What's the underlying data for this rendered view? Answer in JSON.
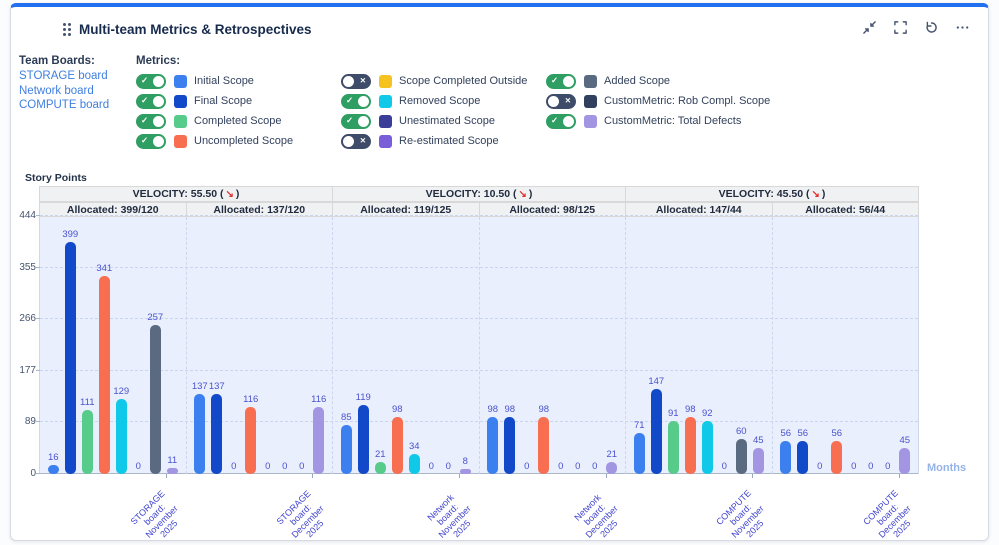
{
  "header": {
    "title": "Multi-team Metrics & Retrospectives",
    "icons": [
      "drag-handle-icon",
      "collapse-icon",
      "fullscreen-icon",
      "refresh-icon",
      "more-options-icon"
    ]
  },
  "team_boards": {
    "label": "Team Boards:",
    "links": [
      "STORAGE board",
      "Network board",
      "COMPUTE board"
    ],
    "link_color": "#3f7fe0"
  },
  "metrics": {
    "label": "Metrics:",
    "columns": [
      [
        {
          "label": "Initial Scope",
          "color": "#3c80ef",
          "enabled": true
        },
        {
          "label": "Final Scope",
          "color": "#1149c8",
          "enabled": true
        },
        {
          "label": "Completed Scope",
          "color": "#57cc8a",
          "enabled": true
        },
        {
          "label": "Uncompleted Scope",
          "color": "#f76e50",
          "enabled": true
        }
      ],
      [
        {
          "label": "Scope Completed Outside",
          "color": "#f6c21f",
          "enabled": false
        },
        {
          "label": "Removed Scope",
          "color": "#10c9e8",
          "enabled": true
        },
        {
          "label": "Unestimated Scope",
          "color": "#3a3e99",
          "enabled": true
        },
        {
          "label": "Re-estimated Scope",
          "color": "#7a5ed9",
          "enabled": false
        }
      ],
      [
        {
          "label": "Added Scope",
          "color": "#5a6a80",
          "enabled": true
        },
        {
          "label": "CustomMetric: Rob Compl. Scope",
          "color": "#324060",
          "enabled": false
        },
        {
          "label": "CustomMetric: Total Defects",
          "color": "#a295e1",
          "enabled": true
        }
      ]
    ],
    "toggle_on_color": "#2f9e63",
    "toggle_off_color": "#3e4c69"
  },
  "chart_data": {
    "type": "bar",
    "ylabel": "Story Points",
    "xlabel": "Months",
    "ylim": [
      0,
      444
    ],
    "y_ticks": [
      0,
      89,
      177,
      266,
      355,
      444
    ],
    "grid": "dashed",
    "trend_arrow": "↘",
    "velocity_headers": [
      {
        "label": "VELOCITY: 55.50",
        "trend": "down"
      },
      {
        "label": "VELOCITY: 10.50",
        "trend": "down"
      },
      {
        "label": "VELOCITY: 45.50",
        "trend": "down"
      }
    ],
    "allocated_headers": [
      "Allocated: 399/120",
      "Allocated: 137/120",
      "Allocated: 119/125",
      "Allocated: 98/125",
      "Allocated: 147/44",
      "Allocated: 56/44"
    ],
    "categories": [
      {
        "label": "STORAGE board: November 2025",
        "lines": [
          "STORAGE",
          "board:",
          "November",
          "2025"
        ]
      },
      {
        "label": "STORAGE board: December 2025",
        "lines": [
          "STORAGE",
          "board:",
          "December",
          "2025"
        ]
      },
      {
        "label": "Network board: November 2025",
        "lines": [
          "Network",
          "board:",
          "November",
          "2025"
        ]
      },
      {
        "label": "Network board: December 2025",
        "lines": [
          "Network",
          "board:",
          "December",
          "2025"
        ]
      },
      {
        "label": "COMPUTE board: November 2025",
        "lines": [
          "COMPUTE",
          "board:",
          "November",
          "2025"
        ]
      },
      {
        "label": "COMPUTE board: December 2025",
        "lines": [
          "COMPUTE",
          "board:",
          "December",
          "2025"
        ]
      }
    ],
    "series": [
      {
        "name": "Initial Scope",
        "color": "#3c80ef",
        "values": [
          16,
          137,
          85,
          98,
          71,
          56
        ]
      },
      {
        "name": "Final Scope",
        "color": "#1149c8",
        "values": [
          399,
          137,
          119,
          98,
          147,
          56
        ]
      },
      {
        "name": "Completed Scope",
        "color": "#57cc8a",
        "values": [
          111,
          0,
          21,
          0,
          91,
          0
        ]
      },
      {
        "name": "Uncompleted Scope",
        "color": "#f76e50",
        "values": [
          341,
          116,
          98,
          98,
          98,
          56
        ]
      },
      {
        "name": "Removed Scope",
        "color": "#10c9e8",
        "values": [
          129,
          0,
          34,
          0,
          92,
          0
        ]
      },
      {
        "name": "Unestimated Scope",
        "color": "#3a3e99",
        "values": [
          0,
          0,
          0,
          0,
          0,
          0
        ]
      },
      {
        "name": "Added Scope",
        "color": "#5a6a80",
        "values": [
          257,
          0,
          0,
          0,
          60,
          0
        ]
      },
      {
        "name": "CustomMetric: Total Defects",
        "color": "#a295e1",
        "values": [
          11,
          116,
          8,
          21,
          45,
          45
        ]
      }
    ]
  }
}
